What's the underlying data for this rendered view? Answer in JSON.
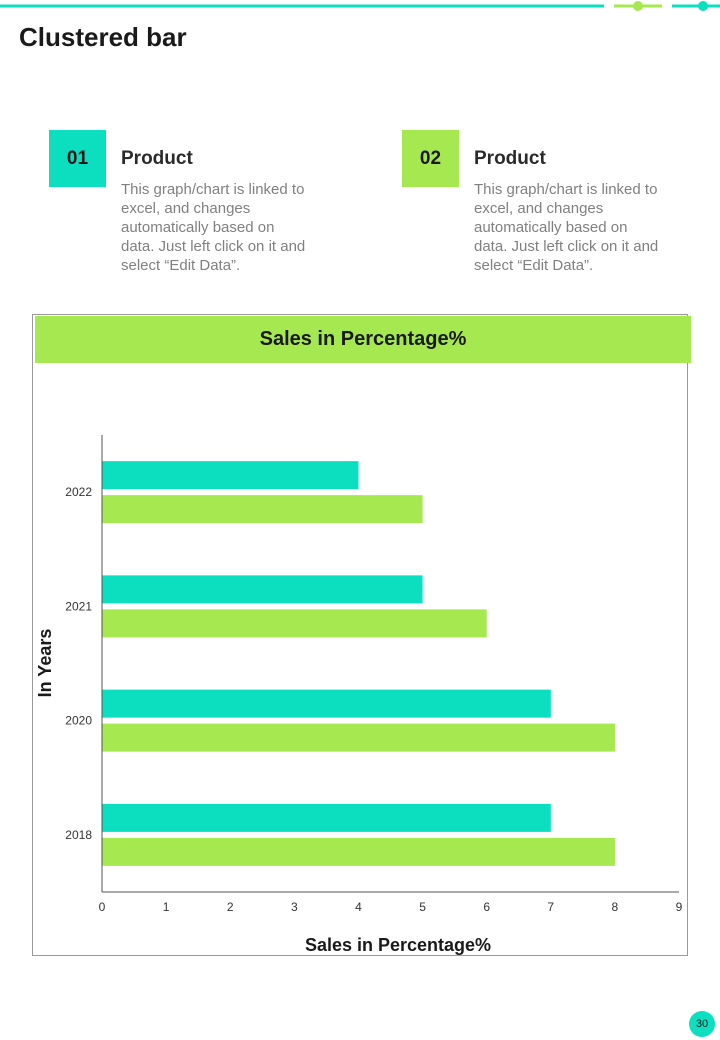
{
  "page": {
    "title": "Clustered bar",
    "page_number": "30"
  },
  "colors": {
    "teal": "#0bdfbf",
    "green": "#a6e84f",
    "axis": "#555555"
  },
  "features": [
    {
      "number": "01",
      "title": "Product",
      "description": "This graph/chart is linked to excel, and changes automatically based on data. Just left click on it and select “Edit Data”.",
      "color": "#0bdfbf"
    },
    {
      "number": "02",
      "title": "Product",
      "description": "This graph/chart is linked to excel, and changes automatically based on data. Just left click on it and select “Edit Data”.",
      "color": "#a6e84f"
    }
  ],
  "chart_data": {
    "type": "bar",
    "orientation": "horizontal",
    "title": "Sales in Percentage%",
    "xlabel": "Sales in Percentage%",
    "ylabel": "In Years",
    "categories": [
      "2018",
      "2020",
      "2021",
      "2022"
    ],
    "xlim": [
      0,
      9
    ],
    "xticks": [
      "0",
      "1",
      "2",
      "3",
      "4",
      "5",
      "6",
      "7",
      "8",
      "9"
    ],
    "grid": false,
    "legend": "none",
    "series": [
      {
        "values": [
          7,
          7,
          5,
          4
        ],
        "color": "#0bdfbf"
      },
      {
        "values": [
          8,
          8,
          6,
          5
        ],
        "color": "#a6e84f"
      }
    ]
  }
}
